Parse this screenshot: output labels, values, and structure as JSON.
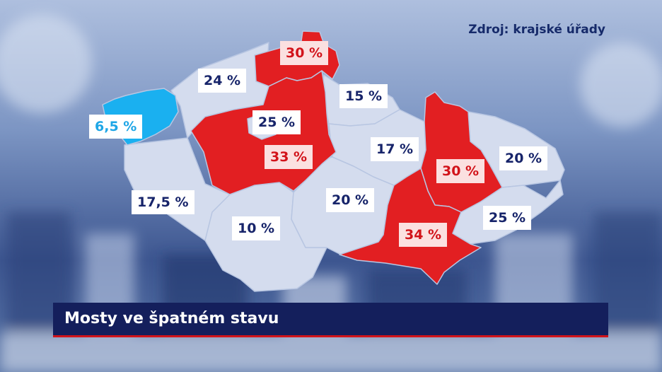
{
  "source": "Zdroj: krajské úřady",
  "title": "Mosty ve špatném stavu",
  "colors": {
    "region_default": "#d4dcee",
    "region_high": "#e21f22",
    "region_low": "#1ab0f0",
    "label_text": "#17246a",
    "label_high_text": "#d2131a",
    "label_low_text": "#1ea6e6",
    "banner_bg": "#141f5c",
    "banner_accent": "#d2131a"
  },
  "regions": [
    {
      "id": "karlovarsky",
      "value": "6,5 %",
      "category": "low"
    },
    {
      "id": "ustecky",
      "value": "24 %",
      "category": "normal"
    },
    {
      "id": "liberecky",
      "value": "30 %",
      "category": "high"
    },
    {
      "id": "kralovehradecky",
      "value": "15 %",
      "category": "normal"
    },
    {
      "id": "praha",
      "value": "25 %",
      "category": "normal"
    },
    {
      "id": "stredocesky",
      "value": "33 %",
      "category": "high"
    },
    {
      "id": "pardubicky",
      "value": "17 %",
      "category": "normal"
    },
    {
      "id": "olomoucky",
      "value": "30 %",
      "category": "high"
    },
    {
      "id": "moravskoslezsky",
      "value": "20 %",
      "category": "normal"
    },
    {
      "id": "plzensky",
      "value": "17,5 %",
      "category": "normal"
    },
    {
      "id": "jihocesky",
      "value": "10 %",
      "category": "normal"
    },
    {
      "id": "vysocina",
      "value": "20 %",
      "category": "normal"
    },
    {
      "id": "jihomoravsky",
      "value": "34 %",
      "category": "high"
    },
    {
      "id": "zlinsky",
      "value": "25 %",
      "category": "normal"
    }
  ]
}
